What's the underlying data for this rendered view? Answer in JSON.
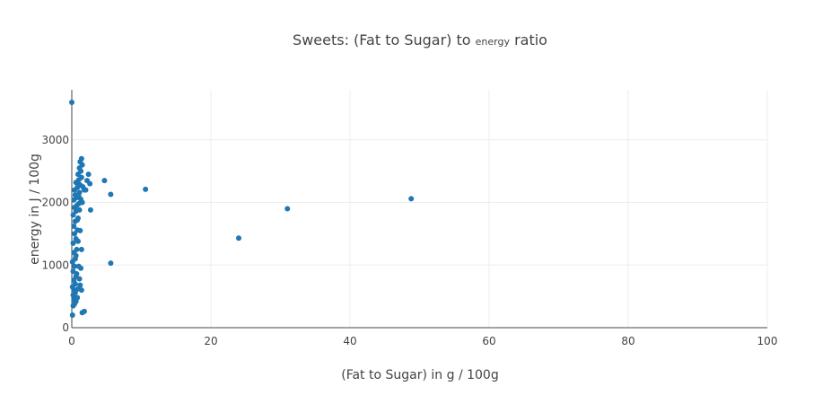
{
  "chart_data": {
    "type": "scatter",
    "title_prefix": "Sweets: (Fat to Sugar) to",
    "title_sub": "energy",
    "title_suffix": "ratio",
    "xlabel": "(Fat to Sugar) in g / 100g",
    "ylabel": "energy in J / 100g",
    "xlim": [
      0,
      100
    ],
    "ylim": [
      0,
      3800
    ],
    "x_ticks": [
      0,
      20,
      40,
      60,
      80,
      100
    ],
    "y_ticks": [
      0,
      1000,
      2000,
      3000
    ],
    "grid": true,
    "marker_color": "#1f77b4",
    "points": [
      [
        0.0,
        3600
      ],
      [
        0.1,
        200
      ],
      [
        0.2,
        350
      ],
      [
        0.3,
        450
      ],
      [
        0.2,
        520
      ],
      [
        0.4,
        600
      ],
      [
        0.1,
        650
      ],
      [
        0.5,
        700
      ],
      [
        0.3,
        760
      ],
      [
        0.6,
        820
      ],
      [
        0.2,
        900
      ],
      [
        0.4,
        980
      ],
      [
        0.1,
        1050
      ],
      [
        0.5,
        1100
      ],
      [
        0.3,
        1200
      ],
      [
        0.7,
        1250
      ],
      [
        0.2,
        1350
      ],
      [
        0.6,
        1420
      ],
      [
        0.4,
        1500
      ],
      [
        0.8,
        1560
      ],
      [
        0.3,
        1620
      ],
      [
        0.5,
        1700
      ],
      [
        0.9,
        1750
      ],
      [
        0.2,
        1800
      ],
      [
        0.6,
        1860
      ],
      [
        0.4,
        1920
      ],
      [
        1.0,
        1980
      ],
      [
        0.3,
        2040
      ],
      [
        0.7,
        2080
      ],
      [
        0.5,
        2120
      ],
      [
        1.1,
        2160
      ],
      [
        0.4,
        2200
      ],
      [
        0.8,
        2240
      ],
      [
        1.2,
        2280
      ],
      [
        0.6,
        2320
      ],
      [
        1.0,
        2360
      ],
      [
        1.4,
        2400
      ],
      [
        0.9,
        2450
      ],
      [
        1.3,
        2500
      ],
      [
        1.1,
        2550
      ],
      [
        1.5,
        2600
      ],
      [
        1.2,
        2650
      ],
      [
        1.4,
        2700
      ],
      [
        0.9,
        2300
      ],
      [
        1.6,
        2250
      ],
      [
        1.8,
        2200
      ],
      [
        1.0,
        2100
      ],
      [
        1.3,
        2050
      ],
      [
        1.5,
        2000
      ],
      [
        0.7,
        1950
      ],
      [
        1.1,
        1880
      ],
      [
        0.8,
        1720
      ],
      [
        1.2,
        1550
      ],
      [
        0.9,
        1380
      ],
      [
        1.4,
        1250
      ],
      [
        0.6,
        1150
      ],
      [
        1.0,
        980
      ],
      [
        1.3,
        950
      ],
      [
        0.7,
        860
      ],
      [
        1.1,
        780
      ],
      [
        1.2,
        680
      ],
      [
        0.9,
        620
      ],
      [
        1.4,
        600
      ],
      [
        0.5,
        560
      ],
      [
        0.8,
        480
      ],
      [
        0.6,
        420
      ],
      [
        0.4,
        380
      ],
      [
        1.5,
        240
      ],
      [
        1.8,
        260
      ],
      [
        2.0,
        2200
      ],
      [
        2.2,
        2350
      ],
      [
        2.4,
        2450
      ],
      [
        2.6,
        2300
      ],
      [
        2.7,
        1880
      ],
      [
        4.7,
        2350
      ],
      [
        5.6,
        2130
      ],
      [
        5.6,
        1030
      ],
      [
        10.6,
        2210
      ],
      [
        24.0,
        1430
      ],
      [
        31.0,
        1900
      ],
      [
        48.8,
        2060
      ]
    ]
  }
}
